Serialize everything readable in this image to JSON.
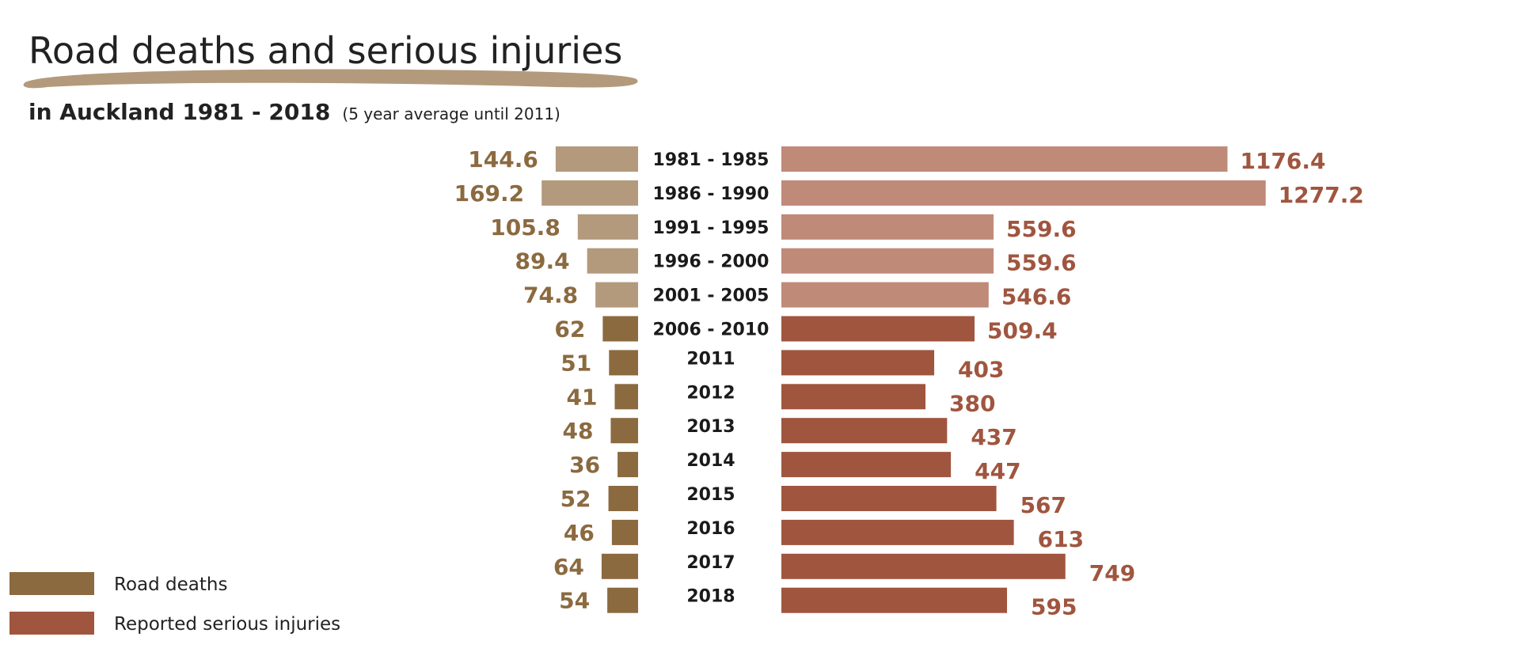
{
  "chart_data": {
    "type": "bar",
    "title": "Road deaths and serious injuries",
    "subtitle": "in Auckland 1981 - 2018",
    "subtitle_note": "(5 year average until 2011)",
    "categories": [
      "1981 - 1985",
      "1986 - 1990",
      "1991 - 1995",
      "1996 - 2000",
      "2001 - 2005",
      "2006 - 2010",
      "2011",
      "2012",
      "2013",
      "2014",
      "2015",
      "2016",
      "2017",
      "2018"
    ],
    "series": [
      {
        "name": "Road deaths",
        "values": [
          144.6,
          169.2,
          105.8,
          89.4,
          74.8,
          62,
          51,
          41,
          48,
          36,
          52,
          46,
          64,
          54
        ],
        "value_labels": [
          "144.6",
          "169.2",
          "105.8",
          "89.4",
          "74.8",
          "62",
          "51",
          "41",
          "48",
          "36",
          "52",
          "46",
          "64",
          "54"
        ],
        "color": "#8b6a40",
        "color_averaged": "#b39a7c",
        "label_color": "#8b6a40"
      },
      {
        "name": "Reported serious injuries",
        "values": [
          1176.4,
          1277.2,
          559.6,
          559.6,
          546.6,
          509.4,
          403,
          380,
          437,
          447,
          567,
          613,
          749,
          595
        ],
        "value_labels": [
          "1176.4",
          "1277.2",
          "559.6",
          "559.6",
          "546.6",
          "509.4",
          "403",
          "380",
          "437",
          "447",
          "567",
          "613",
          "749",
          "595"
        ],
        "color": "#a0553f",
        "color_averaged": "#bf8a78",
        "label_color": "#a0553f"
      }
    ],
    "averaged_count": 5,
    "underline_color": "#b39a7c",
    "legend_position": "bottom-left",
    "grid": false
  }
}
